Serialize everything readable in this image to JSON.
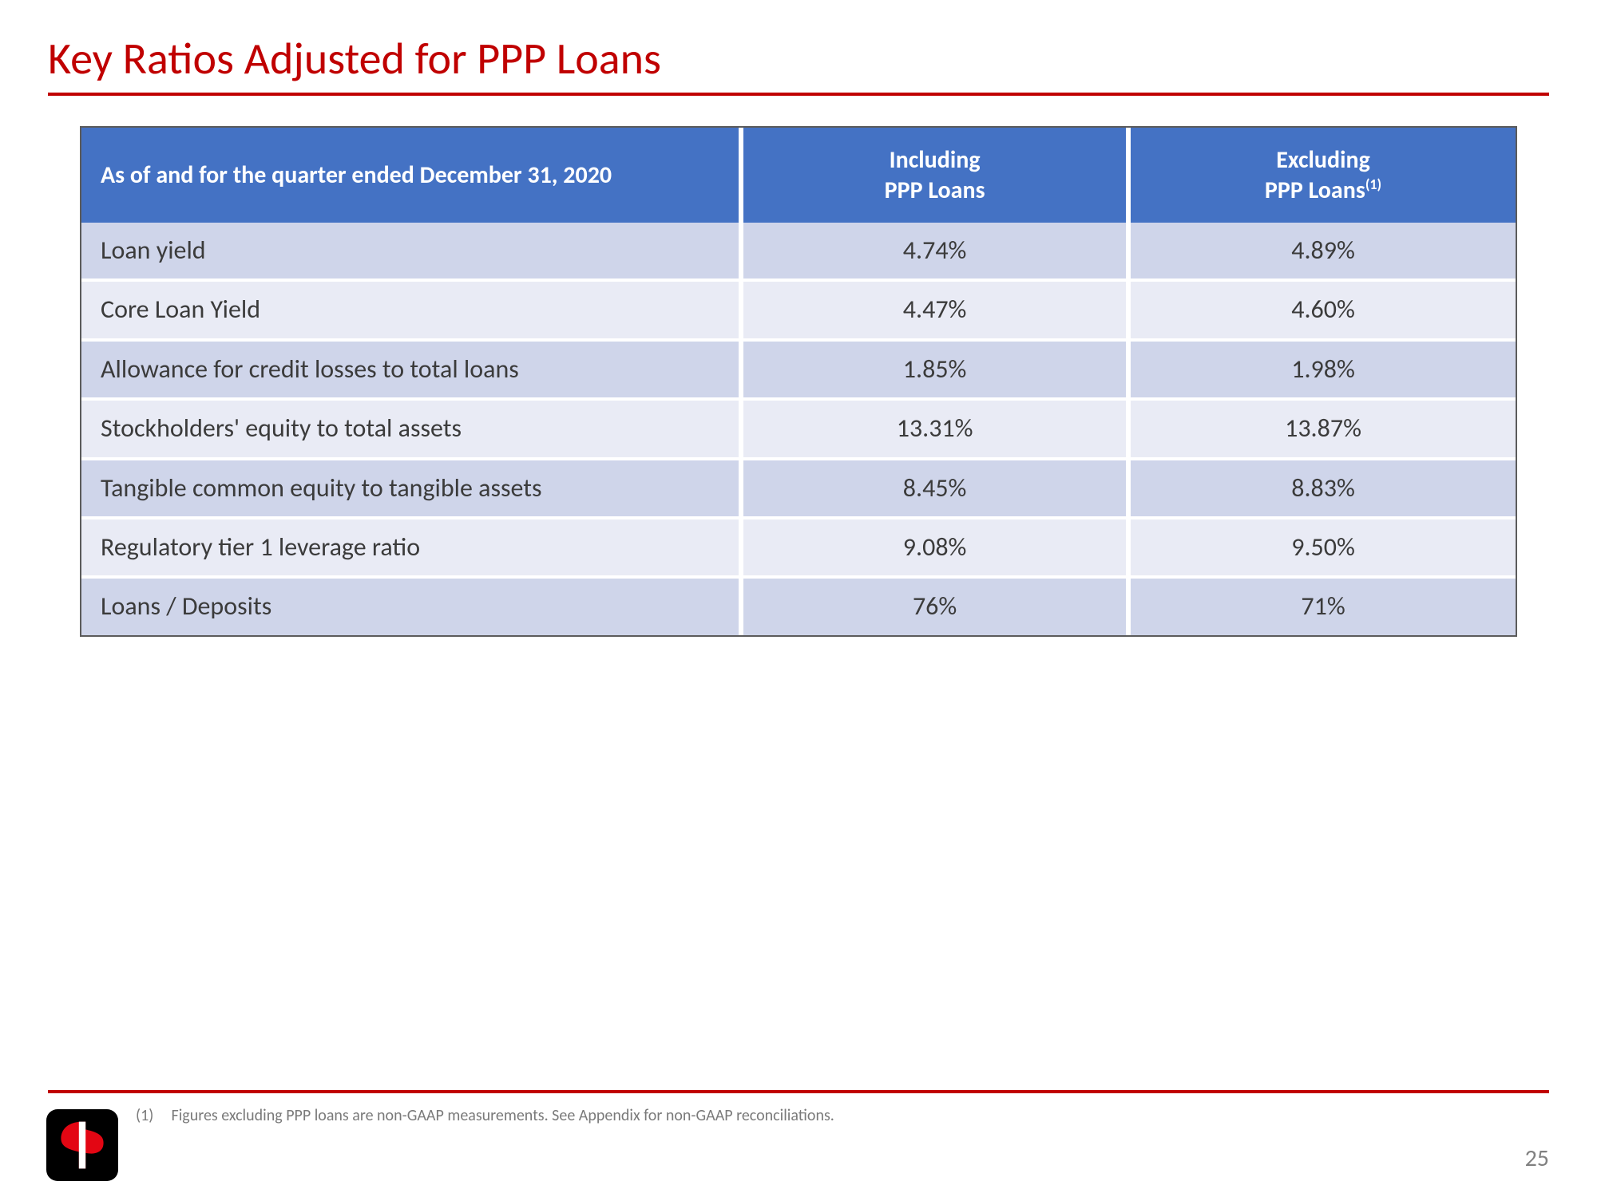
{
  "title": "Key Ratios Adjusted for PPP Loans",
  "table": {
    "header": {
      "rowhead": "As of and for the quarter ended December 31, 2020",
      "col1_line1": "Including",
      "col1_line2": "PPP Loans",
      "col2_line1": "Excluding",
      "col2_line2": "PPP Loans",
      "col2_sup": "(1)"
    },
    "rows": [
      {
        "label": "Loan yield",
        "including": "4.74%",
        "excluding": "4.89%"
      },
      {
        "label": "Core Loan Yield",
        "including": "4.47%",
        "excluding": "4.60%"
      },
      {
        "label": "Allowance for credit losses to total loans",
        "including": "1.85%",
        "excluding": "1.98%"
      },
      {
        "label": "Stockholders' equity to total assets",
        "including": "13.31%",
        "excluding": "13.87%"
      },
      {
        "label": "Tangible common equity to tangible assets",
        "including": "8.45%",
        "excluding": "8.83%"
      },
      {
        "label": "Regulatory tier 1 leverage ratio",
        "including": "9.08%",
        "excluding": "9.50%"
      },
      {
        "label": "Loans / Deposits",
        "including": "76%",
        "excluding": "71%"
      }
    ]
  },
  "footnote": {
    "num": "(1)",
    "text": "Figures excluding PPP loans are non-GAAP measurements. See Appendix for non-GAAP reconciliations."
  },
  "page_number": "25",
  "colors": {
    "accent_red": "#c00000",
    "header_blue": "#4472c4",
    "row_odd": "#cfd5ea",
    "row_even": "#e9ebf5",
    "text": "#3b3b3b",
    "muted": "#7a7a7a"
  }
}
